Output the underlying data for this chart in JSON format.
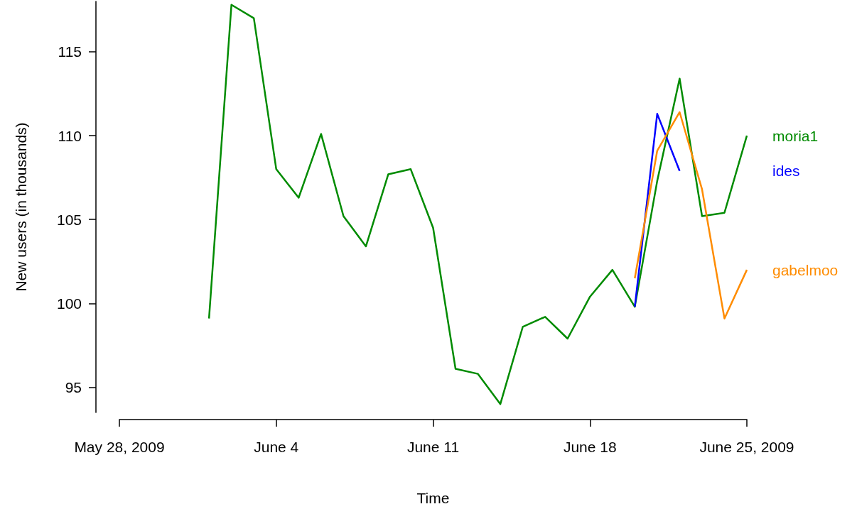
{
  "chart_data": {
    "type": "line",
    "xlabel": "Time",
    "ylabel": "New users (in thousands)",
    "xlim": [
      "2009-05-28",
      "2009-06-25"
    ],
    "xticks": [
      {
        "value": "2009-05-28",
        "label": "May 28, 2009"
      },
      {
        "value": "2009-06-04",
        "label": "June 4"
      },
      {
        "value": "2009-06-11",
        "label": "June 11"
      },
      {
        "value": "2009-06-18",
        "label": "June 18"
      },
      {
        "value": "2009-06-25",
        "label": "June 25, 2009"
      }
    ],
    "ylim": [
      93.5,
      118
    ],
    "yticks": [
      95,
      100,
      105,
      110,
      115
    ],
    "grid": false,
    "legend": false,
    "marker": "none",
    "line_style": "solid",
    "series": [
      {
        "name": "moria1",
        "color": "#008b00",
        "x": [
          "2009-06-01",
          "2009-06-02",
          "2009-06-03",
          "2009-06-04",
          "2009-06-05",
          "2009-06-06",
          "2009-06-07",
          "2009-06-08",
          "2009-06-09",
          "2009-06-10",
          "2009-06-11",
          "2009-06-12",
          "2009-06-13",
          "2009-06-14",
          "2009-06-15",
          "2009-06-16",
          "2009-06-17",
          "2009-06-18",
          "2009-06-19",
          "2009-06-20",
          "2009-06-21",
          "2009-06-22",
          "2009-06-23",
          "2009-06-24",
          "2009-06-25"
        ],
        "values": [
          99.1,
          117.8,
          117.0,
          108.0,
          106.3,
          110.1,
          105.2,
          103.4,
          107.7,
          108.0,
          104.5,
          96.1,
          95.8,
          94.0,
          98.6,
          99.2,
          97.9,
          100.4,
          102.0,
          99.8,
          107.3,
          113.4,
          105.2,
          105.4,
          110.0
        ]
      },
      {
        "name": "ides",
        "color": "#0000ff",
        "x": [
          "2009-06-20",
          "2009-06-21",
          "2009-06-22"
        ],
        "values": [
          99.8,
          111.3,
          107.9
        ]
      },
      {
        "name": "gabelmoo",
        "color": "#ff8c00",
        "x": [
          "2009-06-20",
          "2009-06-21",
          "2009-06-22",
          "2009-06-23",
          "2009-06-24",
          "2009-06-25"
        ],
        "values": [
          101.5,
          109.1,
          111.4,
          106.8,
          99.1,
          102.0
        ]
      }
    ]
  }
}
